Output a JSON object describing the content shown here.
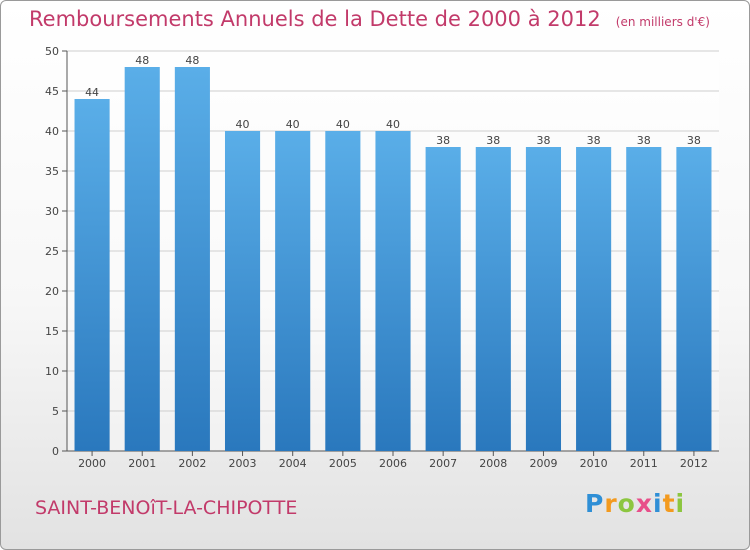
{
  "title": "Remboursements Annuels de la Dette de 2000 à 2012",
  "unit_note": "(en milliers d'€)",
  "commune": "SAINT-BENOîT-LA-CHIPOTTE",
  "brand": {
    "letters": [
      "P",
      "r",
      "o",
      "x",
      "i",
      "t",
      "i"
    ],
    "colors": [
      "#2f8fd6",
      "#f39a1e",
      "#8cc63f",
      "#e84f8a",
      "#2f8fd6",
      "#f39a1e",
      "#8cc63f"
    ]
  },
  "colors": {
    "bar_top": "#5aaee8",
    "bar_bottom": "#2a78bd",
    "title": "#c23a6a",
    "grid": "#cfcfcf"
  },
  "chart_data": {
    "type": "bar",
    "title": "Remboursements Annuels de la Dette de 2000 à 2012",
    "xlabel": "",
    "ylabel": "",
    "ylim": [
      0,
      50
    ],
    "yticks": [
      0,
      5,
      10,
      15,
      20,
      25,
      30,
      35,
      40,
      45,
      50
    ],
    "categories": [
      "2000",
      "2001",
      "2002",
      "2003",
      "2004",
      "2005",
      "2006",
      "2007",
      "2008",
      "2009",
      "2010",
      "2011",
      "2012"
    ],
    "values": [
      44,
      48,
      48,
      40,
      40,
      40,
      40,
      38,
      38,
      38,
      38,
      38,
      38
    ],
    "grid": true
  }
}
